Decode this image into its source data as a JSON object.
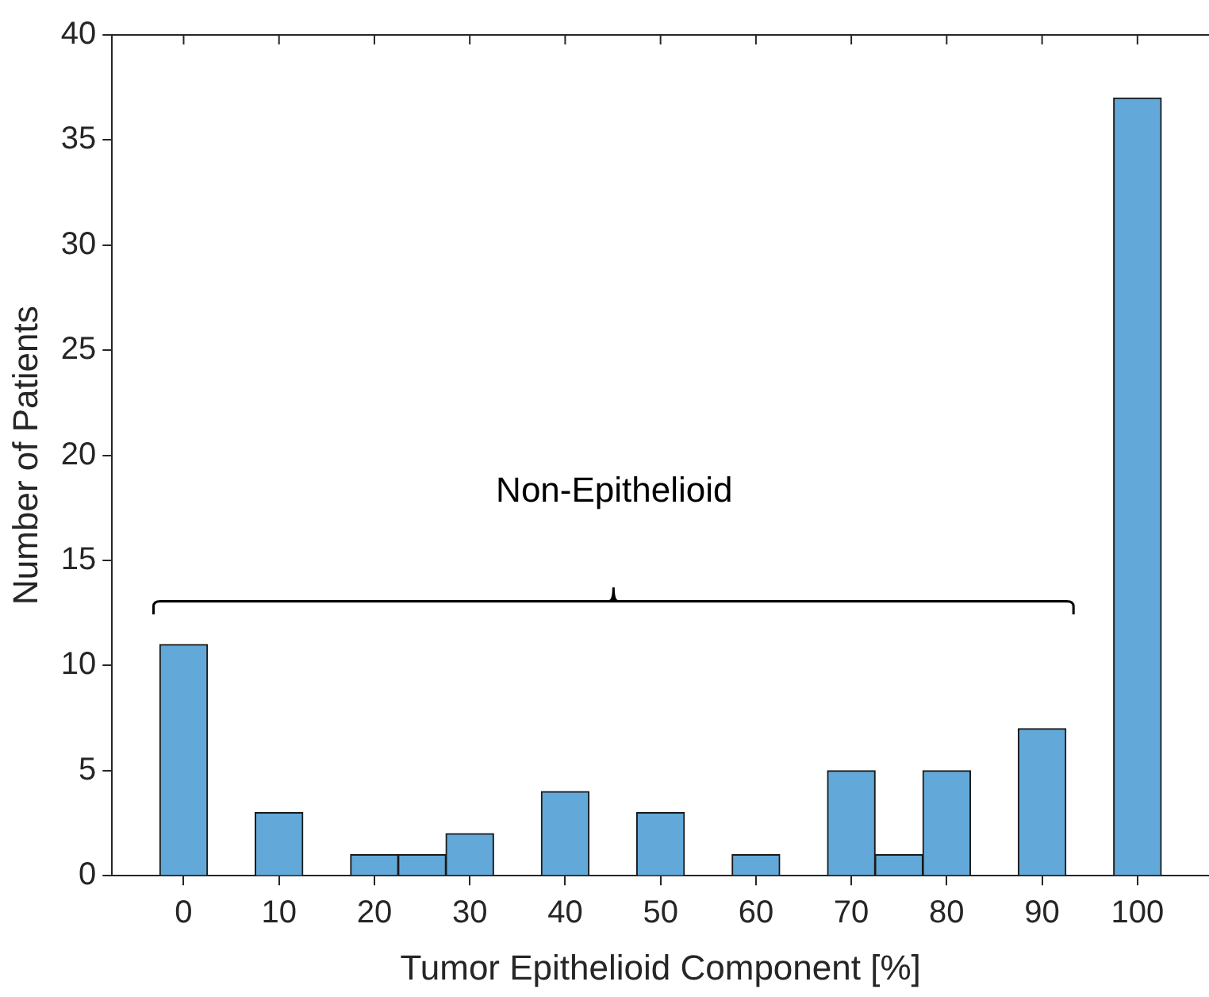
{
  "chart_data": {
    "type": "bar",
    "xlabel": "Tumor Epithelioid Component [%]",
    "ylabel": "Number of Patients",
    "x": [
      0,
      10,
      20,
      25,
      30,
      40,
      50,
      60,
      70,
      75,
      80,
      90,
      100
    ],
    "values": [
      11,
      3,
      1,
      1,
      2,
      4,
      3,
      1,
      5,
      1,
      5,
      7,
      37
    ],
    "color": "#62a8d8",
    "xlim": [
      -7.5,
      107.5
    ],
    "xticks": [
      0,
      10,
      20,
      30,
      40,
      50,
      60,
      70,
      80,
      90,
      100
    ],
    "ylim": [
      0,
      40
    ],
    "yticks": [
      0,
      5,
      10,
      15,
      20,
      25,
      30,
      35,
      40
    ],
    "grid": false,
    "legend": false,
    "annotations": [
      "Non-Epithelioid"
    ]
  }
}
